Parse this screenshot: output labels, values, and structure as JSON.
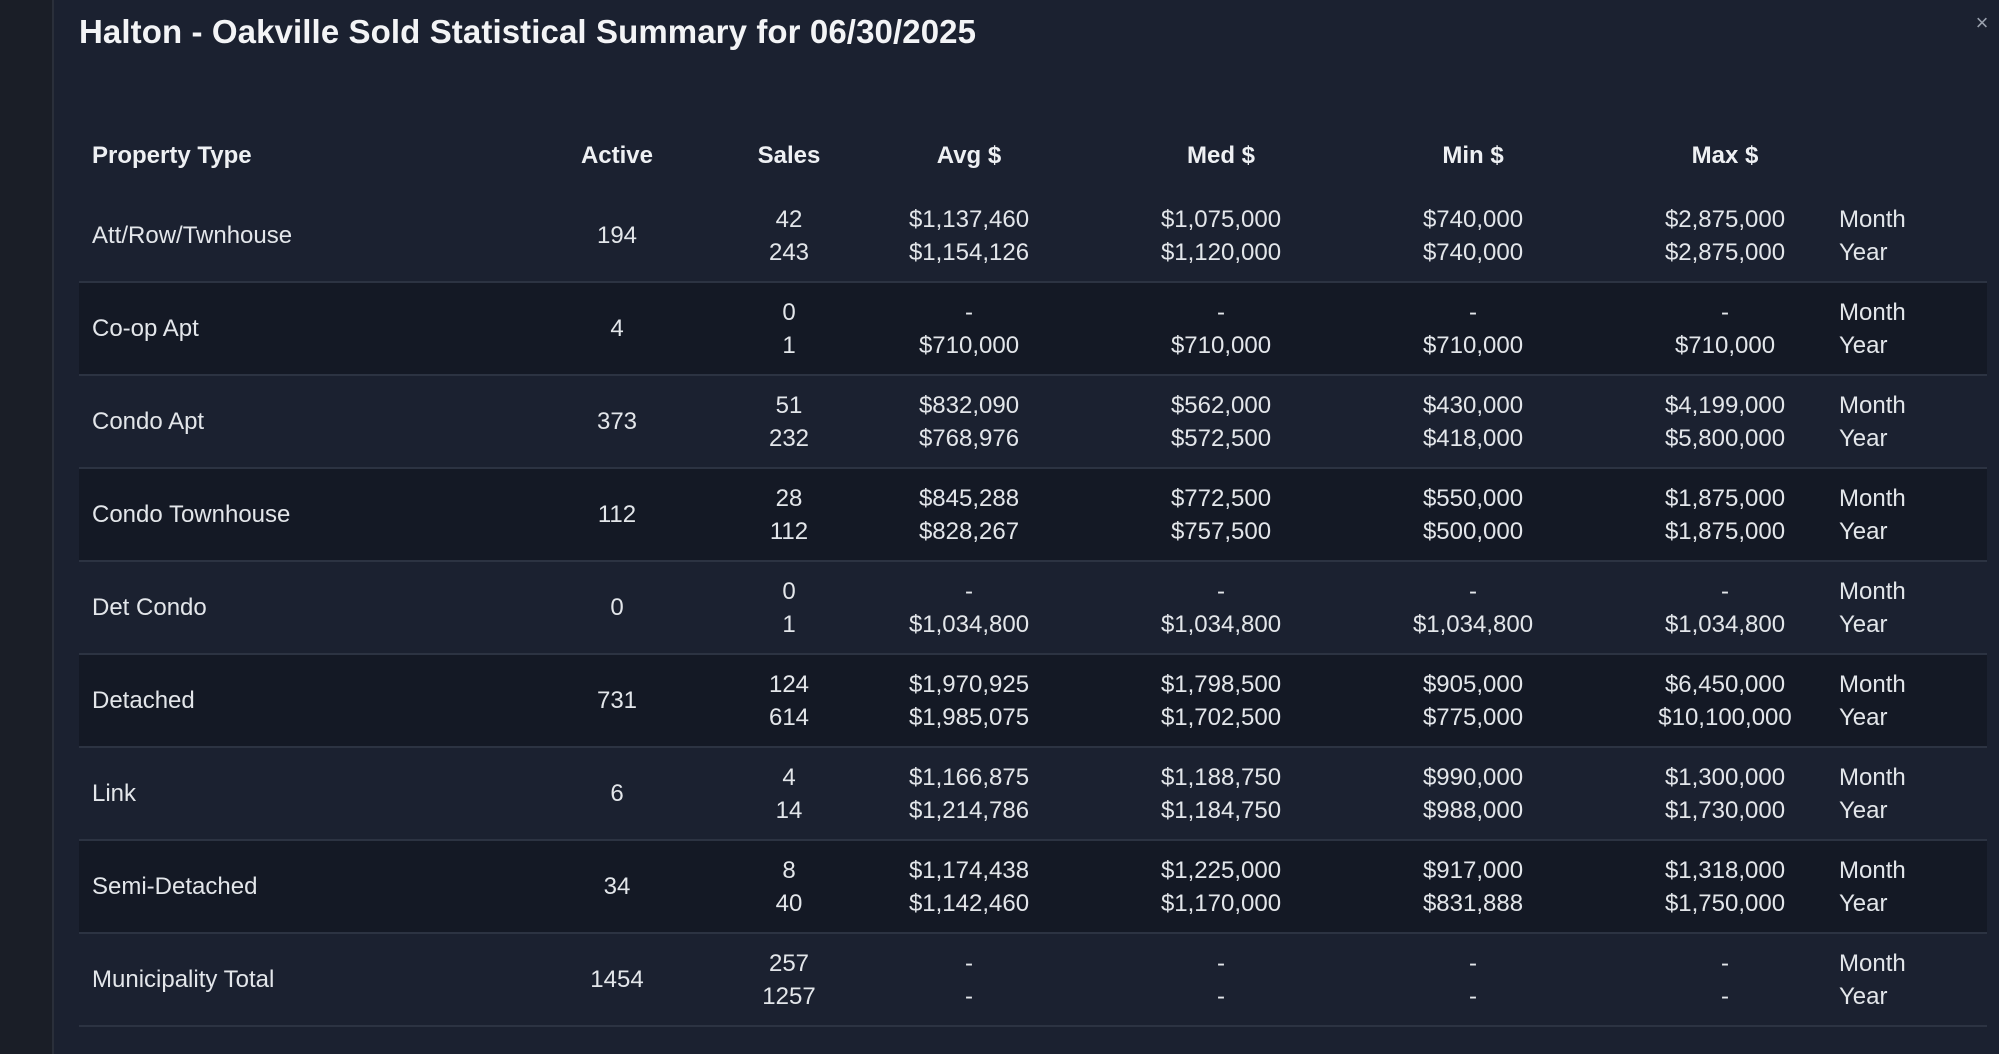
{
  "modal": {
    "title": "Halton - Oakville Sold Statistical Summary for 06/30/2025",
    "close_glyph": "×"
  },
  "table": {
    "headers": {
      "property_type": "Property Type",
      "active": "Active",
      "sales": "Sales",
      "avg": "Avg $",
      "med": "Med $",
      "min": "Min $",
      "max": "Max $"
    },
    "rows": [
      {
        "type": "Att/Row/Twnhouse",
        "active": "194",
        "sales": [
          "42",
          "243"
        ],
        "avg": [
          "$1,137,460",
          "$1,154,126"
        ],
        "med": [
          "$1,075,000",
          "$1,120,000"
        ],
        "min": [
          "$740,000",
          "$740,000"
        ],
        "max": [
          "$2,875,000",
          "$2,875,000"
        ],
        "period": [
          "Month",
          "Year"
        ]
      },
      {
        "type": "Co-op Apt",
        "active": "4",
        "sales": [
          "0",
          "1"
        ],
        "avg": [
          "-",
          "$710,000"
        ],
        "med": [
          "-",
          "$710,000"
        ],
        "min": [
          "-",
          "$710,000"
        ],
        "max": [
          "-",
          "$710,000"
        ],
        "period": [
          "Month",
          "Year"
        ]
      },
      {
        "type": "Condo Apt",
        "active": "373",
        "sales": [
          "51",
          "232"
        ],
        "avg": [
          "$832,090",
          "$768,976"
        ],
        "med": [
          "$562,000",
          "$572,500"
        ],
        "min": [
          "$430,000",
          "$418,000"
        ],
        "max": [
          "$4,199,000",
          "$5,800,000"
        ],
        "period": [
          "Month",
          "Year"
        ]
      },
      {
        "type": "Condo Townhouse",
        "active": "112",
        "sales": [
          "28",
          "112"
        ],
        "avg": [
          "$845,288",
          "$828,267"
        ],
        "med": [
          "$772,500",
          "$757,500"
        ],
        "min": [
          "$550,000",
          "$500,000"
        ],
        "max": [
          "$1,875,000",
          "$1,875,000"
        ],
        "period": [
          "Month",
          "Year"
        ]
      },
      {
        "type": "Det Condo",
        "active": "0",
        "sales": [
          "0",
          "1"
        ],
        "avg": [
          "-",
          "$1,034,800"
        ],
        "med": [
          "-",
          "$1,034,800"
        ],
        "min": [
          "-",
          "$1,034,800"
        ],
        "max": [
          "-",
          "$1,034,800"
        ],
        "period": [
          "Month",
          "Year"
        ]
      },
      {
        "type": "Detached",
        "active": "731",
        "sales": [
          "124",
          "614"
        ],
        "avg": [
          "$1,970,925",
          "$1,985,075"
        ],
        "med": [
          "$1,798,500",
          "$1,702,500"
        ],
        "min": [
          "$905,000",
          "$775,000"
        ],
        "max": [
          "$6,450,000",
          "$10,100,000"
        ],
        "period": [
          "Month",
          "Year"
        ]
      },
      {
        "type": "Link",
        "active": "6",
        "sales": [
          "4",
          "14"
        ],
        "avg": [
          "$1,166,875",
          "$1,214,786"
        ],
        "med": [
          "$1,188,750",
          "$1,184,750"
        ],
        "min": [
          "$990,000",
          "$988,000"
        ],
        "max": [
          "$1,300,000",
          "$1,730,000"
        ],
        "period": [
          "Month",
          "Year"
        ]
      },
      {
        "type": "Semi-Detached",
        "active": "34",
        "sales": [
          "8",
          "40"
        ],
        "avg": [
          "$1,174,438",
          "$1,142,460"
        ],
        "med": [
          "$1,225,000",
          "$1,170,000"
        ],
        "min": [
          "$917,000",
          "$831,888"
        ],
        "max": [
          "$1,318,000",
          "$1,750,000"
        ],
        "period": [
          "Month",
          "Year"
        ]
      },
      {
        "type": "Municipality Total",
        "active": "1454",
        "sales": [
          "257",
          "1257"
        ],
        "avg": [
          "-",
          "-"
        ],
        "med": [
          "-",
          "-"
        ],
        "min": [
          "-",
          "-"
        ],
        "max": [
          "-",
          "-"
        ],
        "period": [
          "Month",
          "Year"
        ]
      }
    ]
  },
  "colors": {
    "background": "#1b2130",
    "alt_row": "#141925",
    "divider": "#2c3342",
    "text": "#e3e6ea"
  }
}
